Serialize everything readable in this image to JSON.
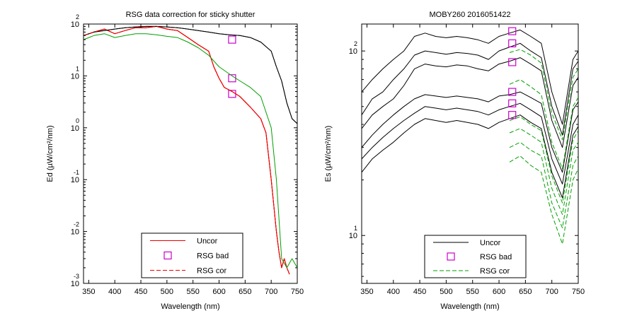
{
  "figure": {
    "colors": {
      "uncor_left": "#ee0000",
      "uncor_right": "#000000",
      "cor": "#00a000",
      "bad": "#cc00cc",
      "axis": "#000000"
    }
  },
  "chart_data": [
    {
      "type": "line",
      "title": "RSG data correction for sticky shutter",
      "xlabel": "Wavelength (nm)",
      "ylabel": "Ed (µW/cm²/nm)",
      "xlim": [
        340,
        750
      ],
      "ylim": [
        0.001,
        100
      ],
      "yscale": "log",
      "x_ticks": [
        350,
        400,
        450,
        500,
        550,
        600,
        650,
        700,
        750
      ],
      "y_ticks": [
        {
          "value": 100,
          "base": "10",
          "exp": "2"
        },
        {
          "value": 10,
          "base": "10",
          "exp": "1"
        },
        {
          "value": 1,
          "base": "10",
          "exp": "0"
        },
        {
          "value": 0.1,
          "base": "10",
          "exp": "-1"
        },
        {
          "value": 0.01,
          "base": "10",
          "exp": "-2"
        },
        {
          "value": 0.001,
          "base": "10",
          "exp": "-3"
        }
      ],
      "legend": {
        "position": "bottom-right",
        "entries": [
          "Uncor",
          "RSG bad",
          "RSG cor"
        ]
      },
      "series": [
        {
          "name": "Uncor",
          "style": "solid",
          "color_key": "uncor_left",
          "x": [
            340,
            360,
            380,
            400,
            420,
            440,
            460,
            480,
            500,
            520,
            540,
            560,
            580,
            590,
            600,
            610,
            625,
            640,
            660,
            680,
            690,
            700,
            710,
            715,
            720,
            725,
            730,
            735
          ],
          "values": [
            60,
            70,
            80,
            65,
            75,
            85,
            85,
            90,
            80,
            75,
            55,
            40,
            30,
            15,
            9,
            6,
            5,
            4,
            2.5,
            1.5,
            0.8,
            0.1,
            0.01,
            0.004,
            0.002,
            0.003,
            0.002,
            0.0015
          ]
        },
        {
          "name": "Uncor",
          "style": "solid",
          "color_key": "uncor_left",
          "x": [
            340,
            360,
            380,
            400,
            420,
            440,
            460,
            480,
            500,
            520,
            540,
            560,
            580,
            590,
            600,
            610,
            625,
            640,
            660,
            680,
            690,
            700,
            710,
            715,
            720,
            725,
            730,
            735
          ],
          "values": [
            60,
            70,
            80,
            65,
            75,
            85,
            85,
            90,
            80,
            75,
            55,
            40,
            30,
            15,
            9,
            6,
            5,
            4,
            2.5,
            1.5,
            0.8,
            0.1,
            0.01,
            0.004,
            0.002,
            0.003,
            0.002,
            0.0015
          ]
        },
        {
          "name": "Uncor",
          "style": "solid",
          "color_key": "uncor_left",
          "x": [
            340,
            360,
            380,
            400,
            420,
            440,
            460,
            480,
            500,
            520,
            540,
            560,
            580,
            590,
            600,
            610,
            625,
            640,
            660,
            680,
            690,
            700,
            710,
            715,
            720,
            725,
            730,
            735
          ],
          "values": [
            60,
            70,
            80,
            65,
            75,
            85,
            85,
            90,
            80,
            75,
            55,
            40,
            30,
            15,
            9,
            6,
            5,
            4,
            2.5,
            1.5,
            0.8,
            0.1,
            0.01,
            0.004,
            0.002,
            0.003,
            0.002,
            0.0015
          ]
        },
        {
          "name": "Uncor",
          "style": "solid",
          "color_key": "uncor_right",
          "x": [
            340,
            360,
            380,
            400,
            420,
            440,
            460,
            480,
            500,
            520,
            540,
            560,
            580,
            600,
            620,
            640,
            660,
            680,
            700,
            710,
            720,
            730,
            740,
            750
          ],
          "values": [
            60,
            70,
            75,
            80,
            85,
            88,
            90,
            90,
            88,
            85,
            80,
            75,
            70,
            65,
            62,
            60,
            55,
            45,
            30,
            15,
            8,
            3,
            1.5,
            1.2
          ]
        },
        {
          "name": "Uncor",
          "style": "solid",
          "color_key": "uncor_right",
          "x": [
            340,
            360,
            380,
            400,
            420,
            440,
            460,
            480,
            500,
            520,
            540,
            560,
            580,
            600,
            620,
            640,
            660,
            680,
            700,
            710,
            720,
            730,
            740,
            750
          ],
          "values": [
            60,
            70,
            75,
            80,
            85,
            88,
            90,
            90,
            88,
            85,
            80,
            75,
            70,
            65,
            62,
            60,
            55,
            45,
            30,
            15,
            8,
            3,
            1.5,
            1.2
          ]
        },
        {
          "name": "RSG bad",
          "style": "marker",
          "color_key": "bad",
          "x": [
            625,
            625,
            625
          ],
          "values": [
            50,
            9,
            4.5
          ]
        },
        {
          "name": "RSG cor",
          "style": "dashed",
          "color_key": "uncor_left",
          "x": [
            340,
            360,
            380,
            400,
            420,
            440,
            460,
            480,
            500,
            520,
            540,
            560,
            580,
            590,
            600,
            610,
            625,
            640,
            660,
            680,
            690,
            700,
            710,
            715,
            720,
            725,
            730,
            735
          ],
          "values": [
            60,
            70,
            80,
            65,
            75,
            85,
            85,
            90,
            80,
            75,
            55,
            40,
            30,
            15,
            9,
            6,
            5,
            4,
            2.5,
            1.5,
            0.8,
            0.1,
            0.01,
            0.004,
            0.002,
            0.003,
            0.002,
            0.0015
          ]
        },
        {
          "name": "RSG cor",
          "style": "solid",
          "color_key": "cor",
          "x": [
            340,
            360,
            380,
            400,
            420,
            440,
            460,
            480,
            500,
            520,
            540,
            560,
            580,
            600,
            625,
            640,
            660,
            680,
            700,
            710,
            720,
            730,
            740,
            750
          ],
          "values": [
            50,
            60,
            65,
            55,
            60,
            65,
            65,
            62,
            58,
            55,
            45,
            35,
            25,
            15,
            10,
            8,
            6,
            4,
            1,
            0.1,
            0.003,
            0.002,
            0.003,
            0.002
          ]
        }
      ]
    },
    {
      "type": "line",
      "title": "MOBY260  2016051422",
      "xlabel": "Wavelength (nm)",
      "ylabel": "Es (µW/cm²/nm)",
      "xlim": [
        340,
        750
      ],
      "ylim": [
        5.5,
        140
      ],
      "yscale": "log",
      "x_ticks": [
        350,
        400,
        450,
        500,
        550,
        600,
        650,
        700,
        750
      ],
      "y_ticks": [
        {
          "value": 10,
          "base": "10",
          "exp": "1"
        },
        {
          "value": 100,
          "base": "10",
          "exp": "2"
        }
      ],
      "legend": {
        "position": "bottom-right",
        "entries": [
          "Uncor",
          "RSG bad",
          "RSG cor"
        ]
      },
      "series": [
        {
          "name": "Uncor",
          "style": "solid",
          "color_key": "uncor_right",
          "x": [
            340,
            360,
            380,
            400,
            420,
            440,
            460,
            480,
            500,
            520,
            540,
            560,
            580,
            600,
            620,
            640,
            660,
            680,
            700,
            720,
            740,
            750
          ],
          "values": [
            60,
            70,
            80,
            90,
            100,
            120,
            125,
            120,
            118,
            120,
            118,
            115,
            110,
            120,
            125,
            130,
            120,
            110,
            60,
            40,
            90,
            100
          ]
        },
        {
          "name": "Uncor",
          "style": "solid",
          "color_key": "uncor_right",
          "x": [
            340,
            360,
            380,
            400,
            420,
            440,
            460,
            480,
            500,
            520,
            540,
            560,
            580,
            600,
            620,
            640,
            660,
            680,
            700,
            720,
            740,
            750
          ],
          "values": [
            45,
            55,
            60,
            70,
            80,
            95,
            100,
            98,
            96,
            98,
            97,
            95,
            90,
            100,
            105,
            110,
            100,
            92,
            50,
            35,
            80,
            88
          ]
        },
        {
          "name": "Uncor",
          "style": "solid",
          "color_key": "uncor_right",
          "x": [
            340,
            360,
            380,
            400,
            420,
            440,
            460,
            480,
            500,
            520,
            540,
            560,
            580,
            600,
            620,
            640,
            660,
            680,
            700,
            720,
            740,
            750
          ],
          "values": [
            38,
            45,
            50,
            55,
            65,
            80,
            85,
            83,
            82,
            84,
            83,
            80,
            78,
            85,
            88,
            92,
            85,
            78,
            42,
            30,
            65,
            72
          ]
        },
        {
          "name": "Uncor",
          "style": "solid",
          "color_key": "uncor_right",
          "x": [
            340,
            360,
            380,
            400,
            420,
            440,
            460,
            480,
            500,
            520,
            540,
            560,
            580,
            600,
            620,
            640,
            660,
            680,
            700,
            720,
            740,
            750
          ],
          "values": [
            30,
            35,
            40,
            45,
            50,
            55,
            58,
            57,
            56,
            57,
            56,
            55,
            53,
            57,
            58,
            60,
            56,
            52,
            30,
            22,
            48,
            53
          ]
        },
        {
          "name": "Uncor",
          "style": "solid",
          "color_key": "uncor_right",
          "x": [
            340,
            360,
            380,
            400,
            420,
            440,
            460,
            480,
            500,
            520,
            540,
            560,
            580,
            600,
            620,
            640,
            660,
            680,
            700,
            720,
            740,
            750
          ],
          "values": [
            26,
            30,
            34,
            38,
            42,
            46,
            50,
            49,
            48,
            49,
            48,
            47,
            45,
            48,
            50,
            52,
            48,
            44,
            26,
            19,
            40,
            45
          ]
        },
        {
          "name": "Uncor",
          "style": "solid",
          "color_key": "uncor_right",
          "x": [
            340,
            360,
            380,
            400,
            420,
            440,
            460,
            480,
            500,
            520,
            540,
            560,
            580,
            600,
            620,
            640,
            660,
            680,
            700,
            720,
            740,
            750
          ],
          "values": [
            22,
            26,
            29,
            32,
            36,
            40,
            43,
            42,
            41,
            42,
            41,
            40,
            38,
            41,
            43,
            45,
            41,
            38,
            22,
            16,
            35,
            39
          ]
        },
        {
          "name": "RSG bad",
          "style": "marker",
          "color_key": "bad",
          "x": [
            625,
            625,
            625,
            625,
            625,
            625
          ],
          "values": [
            128,
            110,
            87,
            60,
            52,
            45
          ]
        },
        {
          "name": "RSG cor",
          "style": "dashed",
          "color_key": "cor",
          "x": [
            620,
            640,
            660,
            680,
            700,
            720,
            740,
            750
          ],
          "values": [
            98,
            102,
            95,
            86,
            46,
            33,
            72,
            80
          ]
        },
        {
          "name": "RSG cor",
          "style": "dashed",
          "color_key": "cor",
          "x": [
            620,
            640,
            660,
            680,
            700,
            720,
            740,
            750
          ],
          "values": [
            66,
            70,
            64,
            58,
            32,
            23,
            50,
            56
          ]
        },
        {
          "name": "RSG cor",
          "style": "dashed",
          "color_key": "cor",
          "x": [
            620,
            640,
            660,
            680,
            700,
            720,
            740,
            750
          ],
          "values": [
            42,
            44,
            40,
            37,
            21,
            15,
            33,
            37
          ]
        },
        {
          "name": "RSG cor",
          "style": "dashed",
          "color_key": "cor",
          "x": [
            620,
            640,
            660,
            680,
            700,
            720,
            740,
            750
          ],
          "values": [
            36,
            38,
            35,
            32,
            18,
            13,
            29,
            32
          ]
        },
        {
          "name": "RSG cor",
          "style": "dashed",
          "color_key": "cor",
          "x": [
            620,
            640,
            660,
            680,
            700,
            720,
            740,
            750
          ],
          "values": [
            30,
            32,
            29,
            27,
            15,
            11,
            24,
            27
          ]
        },
        {
          "name": "RSG cor",
          "style": "dashed",
          "color_key": "cor",
          "x": [
            620,
            640,
            660,
            680,
            700,
            720,
            740,
            750
          ],
          "values": [
            25,
            27,
            24,
            22,
            13,
            9,
            20,
            23
          ]
        }
      ]
    }
  ]
}
